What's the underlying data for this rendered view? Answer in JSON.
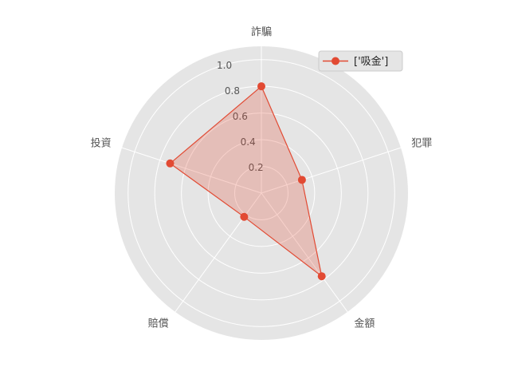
{
  "chart_data": {
    "type": "radar",
    "categories": [
      "詐騙",
      "犯罪",
      "金額",
      "賠償",
      "投資"
    ],
    "series": [
      {
        "name": "['吸金']",
        "values": [
          0.8,
          0.32,
          0.77,
          0.22,
          0.72
        ]
      }
    ],
    "rlim": [
      0,
      1.1
    ],
    "rticks": [
      0.2,
      0.4,
      0.6,
      0.8,
      1.0
    ],
    "rtick_labels": [
      "0.2",
      "0.4",
      "0.6",
      "0.8",
      "1.0"
    ],
    "grid": true,
    "legend_position": "top-right",
    "colors": {
      "series": "#e24a33",
      "fill": "#e24a33",
      "background": "#e5e5e5",
      "grid": "#ffffff",
      "text": "#555555"
    }
  }
}
